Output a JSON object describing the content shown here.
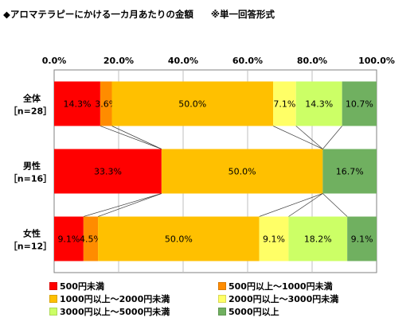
{
  "header": {
    "title": "◆アロマテラピーにかける一カ月あたりの金額",
    "note": "※単一回答形式"
  },
  "chart_data": {
    "type": "bar",
    "orientation": "horizontal",
    "stacked": "percent",
    "categories": [
      {
        "name": "全体",
        "n": "［n=28］"
      },
      {
        "name": "男性",
        "n": "［n=16］"
      },
      {
        "name": "女性",
        "n": "［n=12］"
      }
    ],
    "series": [
      {
        "name": "500円未満",
        "color": "#ff0000",
        "values": [
          14.3,
          33.3,
          9.1
        ],
        "labels": [
          "14.3%",
          "33.3%",
          "9.1%"
        ]
      },
      {
        "name": "500円以上～1000円未満",
        "color": "#ff8c00",
        "values": [
          3.6,
          0,
          4.5
        ],
        "labels": [
          "3.6%",
          "",
          "4.5%"
        ]
      },
      {
        "name": "1000円以上～2000円未満",
        "color": "#ffc000",
        "values": [
          50.0,
          50.0,
          50.0
        ],
        "labels": [
          "50.0%",
          "50.0%",
          "50.0%"
        ]
      },
      {
        "name": "2000円以上～3000円未満",
        "color": "#ffff66",
        "values": [
          7.1,
          0,
          9.1
        ],
        "labels": [
          "7.1%",
          "",
          "9.1%"
        ]
      },
      {
        "name": "3000円以上～5000円未満",
        "color": "#ccff66",
        "values": [
          14.3,
          0,
          18.2
        ],
        "labels": [
          "14.3%",
          "",
          "18.2%"
        ]
      },
      {
        "name": "5000円以上",
        "color": "#70b060",
        "values": [
          10.7,
          16.7,
          9.1
        ],
        "labels": [
          "10.7%",
          "16.7%",
          "9.1%"
        ]
      }
    ],
    "xlim": [
      0,
      100
    ],
    "ticks": [
      "0.0%",
      "20.0%",
      "40.0%",
      "60.0%",
      "80.0%",
      "100.0%"
    ],
    "series_lines": true,
    "grid": true,
    "legend_position": "bottom"
  }
}
